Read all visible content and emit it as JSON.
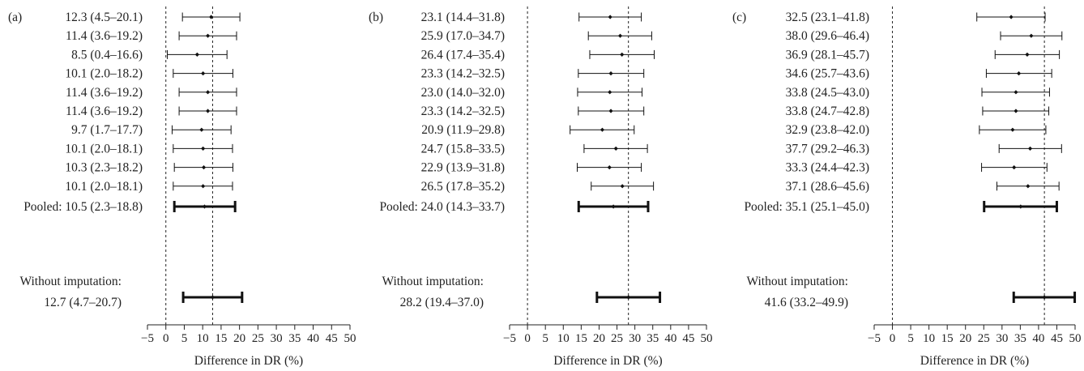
{
  "chart_data": [
    {
      "type": "forest",
      "panel_label": "(a)",
      "xlabel": "Difference in DR (%)",
      "xlim": [
        -5,
        50
      ],
      "xticks": [
        -5,
        0,
        5,
        10,
        15,
        20,
        25,
        30,
        35,
        40,
        45,
        50
      ],
      "rows": [
        {
          "label": "12.3 (4.5–20.1)",
          "est": 12.3,
          "lo": 4.5,
          "hi": 20.1
        },
        {
          "label": "11.4 (3.6–19.2)",
          "est": 11.4,
          "lo": 3.6,
          "hi": 19.2
        },
        {
          "label": "8.5 (0.4–16.6)",
          "est": 8.5,
          "lo": 0.4,
          "hi": 16.6
        },
        {
          "label": "10.1 (2.0–18.2)",
          "est": 10.1,
          "lo": 2.0,
          "hi": 18.2
        },
        {
          "label": "11.4 (3.6–19.2)",
          "est": 11.4,
          "lo": 3.6,
          "hi": 19.2
        },
        {
          "label": "11.4 (3.6–19.2)",
          "est": 11.4,
          "lo": 3.6,
          "hi": 19.2
        },
        {
          "label": "9.7 (1.7–17.7)",
          "est": 9.7,
          "lo": 1.7,
          "hi": 17.7
        },
        {
          "label": "10.1 (2.0–18.1)",
          "est": 10.1,
          "lo": 2.0,
          "hi": 18.1
        },
        {
          "label": "10.3 (2.3–18.2)",
          "est": 10.3,
          "lo": 2.3,
          "hi": 18.2
        },
        {
          "label": "10.1 (2.0–18.1)",
          "est": 10.1,
          "lo": 2.0,
          "hi": 18.1
        }
      ],
      "pooled": {
        "label": "Pooled: 10.5 (2.3–18.8)",
        "est": 10.5,
        "lo": 2.3,
        "hi": 18.8
      },
      "without_imputation": {
        "label_line1": "Without imputation:",
        "label_line2": "12.7 (4.7–20.7)",
        "est": 12.7,
        "lo": 4.7,
        "hi": 20.7
      },
      "reference_lines": [
        0,
        12.7
      ]
    },
    {
      "type": "forest",
      "panel_label": "(b)",
      "xlabel": "Difference in DR (%)",
      "xlim": [
        -5,
        50
      ],
      "xticks": [
        -5,
        0,
        5,
        10,
        15,
        20,
        25,
        30,
        35,
        40,
        45,
        50
      ],
      "rows": [
        {
          "label": "23.1 (14.4–31.8)",
          "est": 23.1,
          "lo": 14.4,
          "hi": 31.8
        },
        {
          "label": "25.9 (17.0–34.7)",
          "est": 25.9,
          "lo": 17.0,
          "hi": 34.7
        },
        {
          "label": "26.4 (17.4–35.4)",
          "est": 26.4,
          "lo": 17.4,
          "hi": 35.4
        },
        {
          "label": "23.3 (14.2–32.5)",
          "est": 23.3,
          "lo": 14.2,
          "hi": 32.5
        },
        {
          "label": "23.0 (14.0–32.0)",
          "est": 23.0,
          "lo": 14.0,
          "hi": 32.0
        },
        {
          "label": "23.3 (14.2–32.5)",
          "est": 23.3,
          "lo": 14.2,
          "hi": 32.5
        },
        {
          "label": "20.9 (11.9–29.8)",
          "est": 20.9,
          "lo": 11.9,
          "hi": 29.8
        },
        {
          "label": "24.7 (15.8–33.5)",
          "est": 24.7,
          "lo": 15.8,
          "hi": 33.5
        },
        {
          "label": "22.9 (13.9–31.8)",
          "est": 22.9,
          "lo": 13.9,
          "hi": 31.8
        },
        {
          "label": "26.5 (17.8–35.2)",
          "est": 26.5,
          "lo": 17.8,
          "hi": 35.2
        }
      ],
      "pooled": {
        "label": "Pooled: 24.0 (14.3–33.7)",
        "est": 24.0,
        "lo": 14.3,
        "hi": 33.7
      },
      "without_imputation": {
        "label_line1": "Without imputation:",
        "label_line2": "28.2 (19.4–37.0)",
        "est": 28.2,
        "lo": 19.4,
        "hi": 37.0
      },
      "reference_lines": [
        0,
        28.2
      ]
    },
    {
      "type": "forest",
      "panel_label": "(c)",
      "xlabel": "Difference in DR (%)",
      "xlim": [
        -5,
        50
      ],
      "xticks": [
        -5,
        0,
        5,
        10,
        15,
        20,
        25,
        30,
        35,
        40,
        45,
        50
      ],
      "rows": [
        {
          "label": "32.5 (23.1–41.8)",
          "est": 32.5,
          "lo": 23.1,
          "hi": 41.8
        },
        {
          "label": "38.0 (29.6–46.4)",
          "est": 38.0,
          "lo": 29.6,
          "hi": 46.4
        },
        {
          "label": "36.9 (28.1–45.7)",
          "est": 36.9,
          "lo": 28.1,
          "hi": 45.7
        },
        {
          "label": "34.6 (25.7–43.6)",
          "est": 34.6,
          "lo": 25.7,
          "hi": 43.6
        },
        {
          "label": "33.8 (24.5–43.0)",
          "est": 33.8,
          "lo": 24.5,
          "hi": 43.0
        },
        {
          "label": "33.8 (24.7–42.8)",
          "est": 33.8,
          "lo": 24.7,
          "hi": 42.8
        },
        {
          "label": "32.9 (23.8–42.0)",
          "est": 32.9,
          "lo": 23.8,
          "hi": 42.0
        },
        {
          "label": "37.7 (29.2–46.3)",
          "est": 37.7,
          "lo": 29.2,
          "hi": 46.3
        },
        {
          "label": "33.3 (24.4–42.3)",
          "est": 33.3,
          "lo": 24.4,
          "hi": 42.3
        },
        {
          "label": "37.1 (28.6–45.6)",
          "est": 37.1,
          "lo": 28.6,
          "hi": 45.6
        }
      ],
      "pooled": {
        "label": "Pooled: 35.1 (25.1–45.0)",
        "est": 35.1,
        "lo": 25.1,
        "hi": 45.0
      },
      "without_imputation": {
        "label_line1": "Without imputation:",
        "label_line2": "41.6 (33.2–49.9)",
        "est": 41.6,
        "lo": 33.2,
        "hi": 49.9
      },
      "reference_lines": [
        0,
        41.6
      ]
    }
  ]
}
